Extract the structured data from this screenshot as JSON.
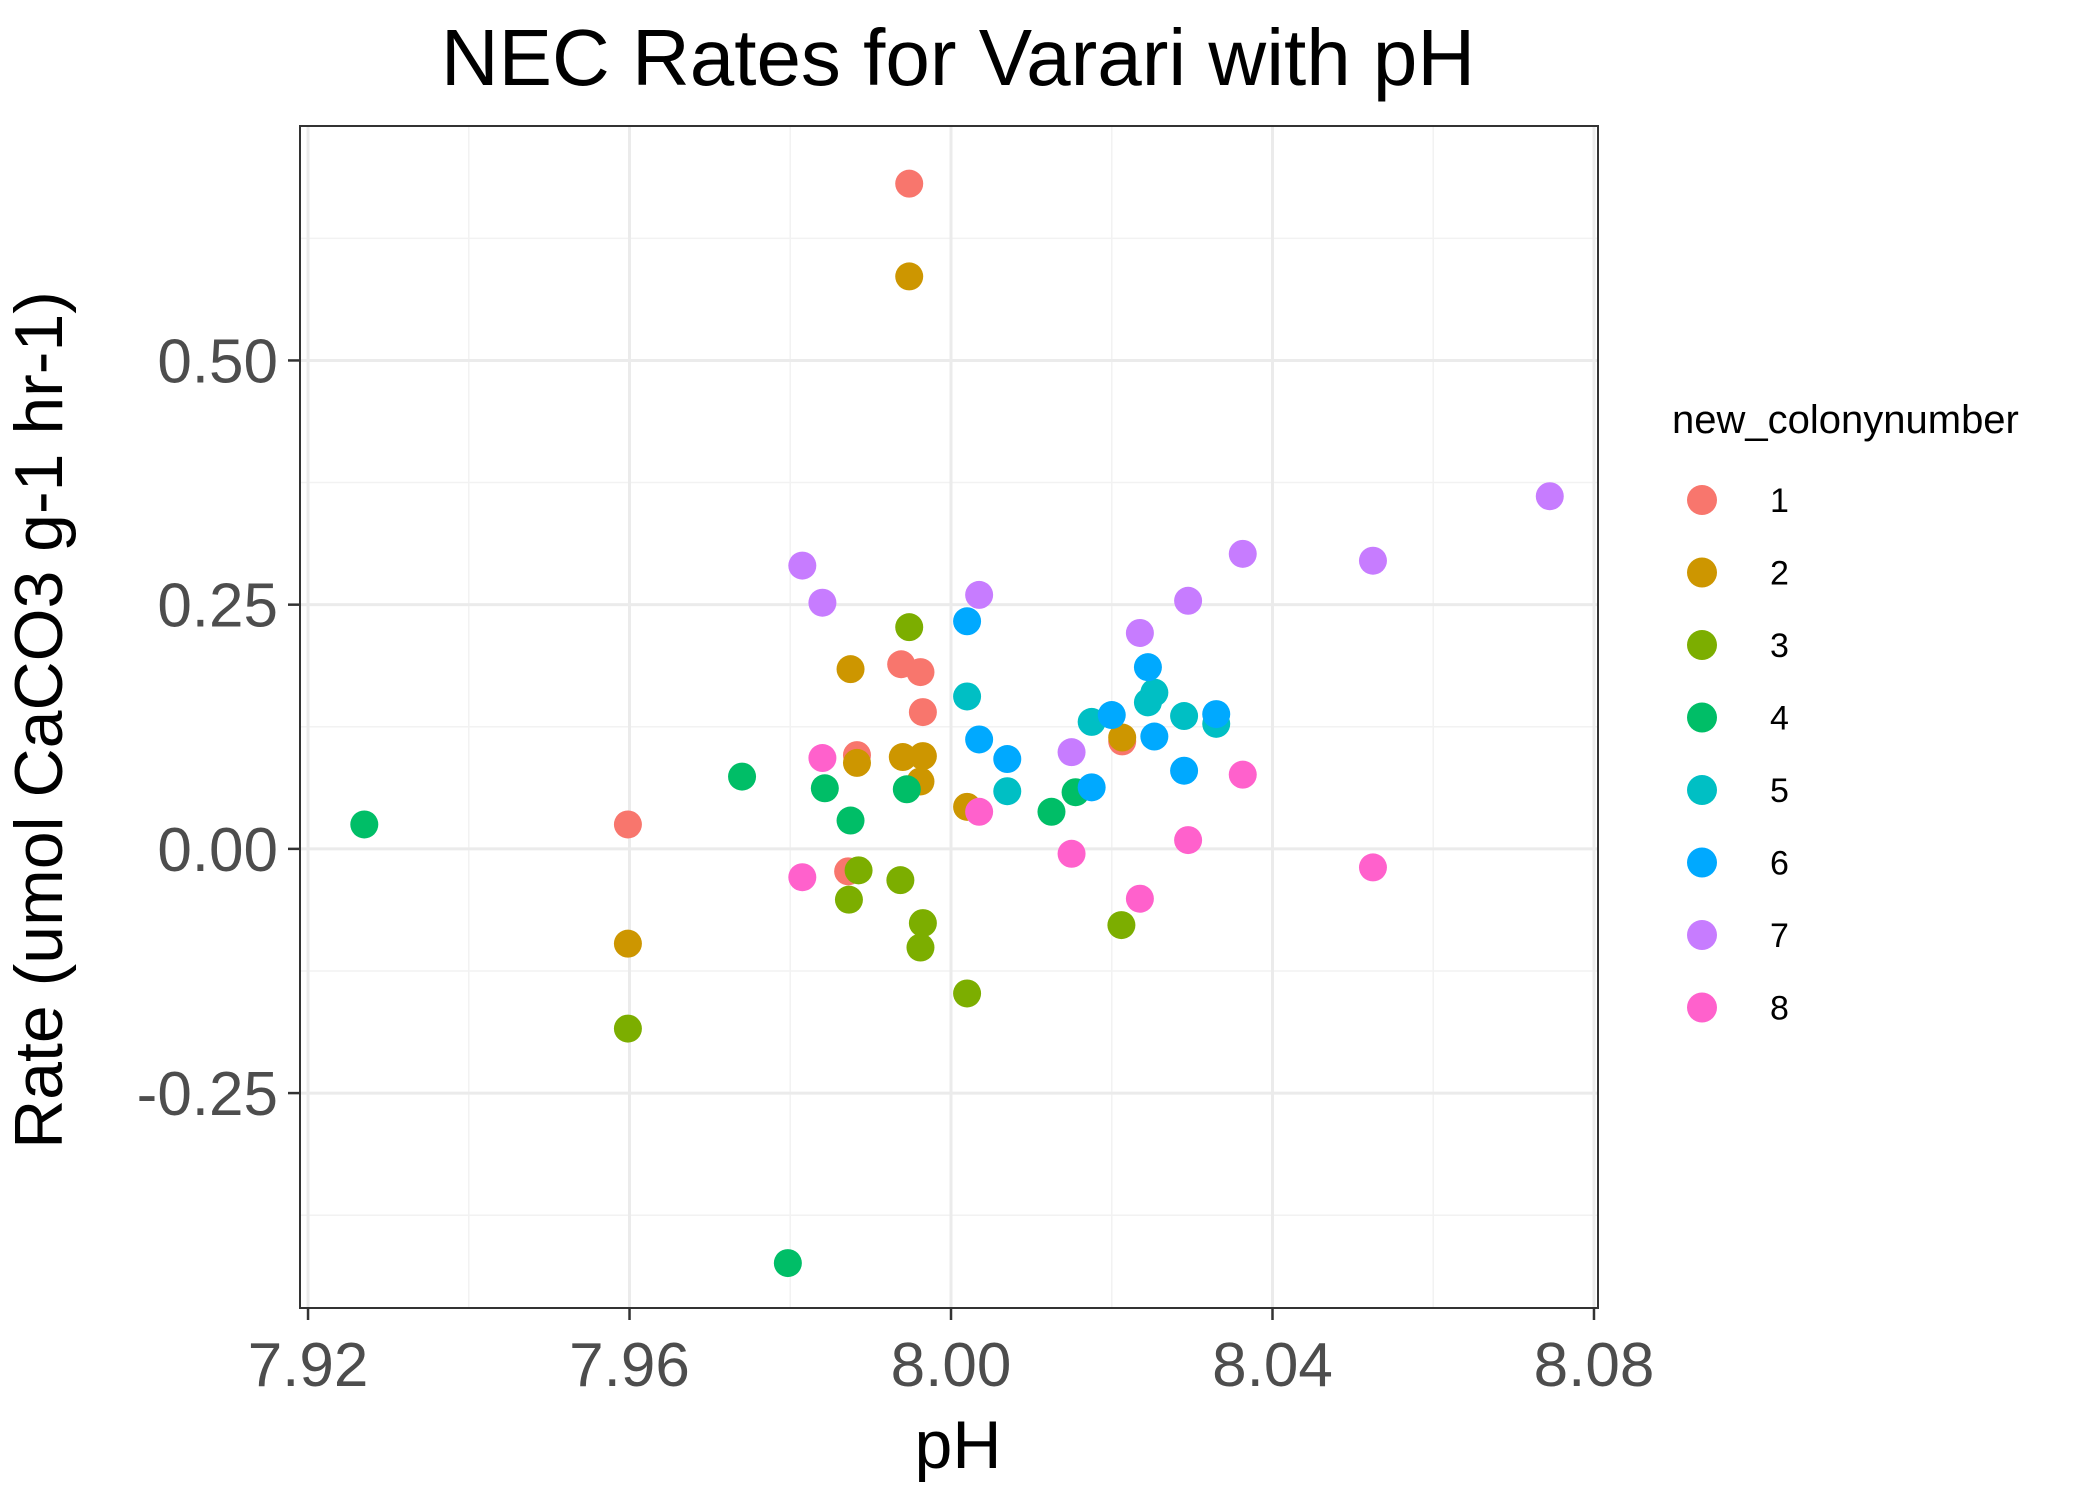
{
  "chart_data": {
    "type": "scatter",
    "title": "NEC Rates for Varari with pH",
    "xlabel": "pH",
    "ylabel": "Rate (umol CaCO3 g-1 hr-1)",
    "xlim": [
      7.919,
      8.0805
    ],
    "ylim": [
      -0.47,
      0.74
    ],
    "x_ticks": [
      7.92,
      7.96,
      8.0,
      8.04,
      8.08
    ],
    "x_tick_labels": [
      "7.92",
      "7.96",
      "8.00",
      "8.04",
      "8.08"
    ],
    "y_ticks": [
      -0.25,
      0.0,
      0.25,
      0.5
    ],
    "y_tick_labels": [
      "-0.25",
      "0.00",
      "0.25",
      "0.50"
    ],
    "grid": true,
    "legend": {
      "title": "new_colonynumber",
      "position": "right"
    },
    "series": [
      {
        "name": "1",
        "color": "#F8766D",
        "points": [
          [
            7.9948,
            0.681
          ],
          [
            7.9598,
            0.025
          ],
          [
            7.9938,
            0.189
          ],
          [
            7.9962,
            0.181
          ],
          [
            7.9965,
            0.14
          ],
          [
            7.9883,
            0.096
          ],
          [
            7.9872,
            -0.023
          ],
          [
            8.0213,
            0.11
          ]
        ]
      },
      {
        "name": "2",
        "color": "#CD9600",
        "points": [
          [
            7.9948,
            0.586
          ],
          [
            7.9598,
            -0.097
          ],
          [
            7.9875,
            0.184
          ],
          [
            7.9883,
            0.088
          ],
          [
            7.994,
            0.094
          ],
          [
            7.9965,
            0.095
          ],
          [
            7.9962,
            0.069
          ],
          [
            8.002,
            0.043
          ],
          [
            8.0213,
            0.114
          ]
        ]
      },
      {
        "name": "3",
        "color": "#7CAE00",
        "points": [
          [
            7.9598,
            -0.184
          ],
          [
            7.9948,
            0.227
          ],
          [
            7.9885,
            -0.022
          ],
          [
            7.9873,
            -0.052
          ],
          [
            7.9937,
            -0.032
          ],
          [
            7.9965,
            -0.076
          ],
          [
            7.9962,
            -0.101
          ],
          [
            8.002,
            -0.148
          ],
          [
            8.0212,
            -0.078
          ]
        ]
      },
      {
        "name": "4",
        "color": "#00BE67",
        "points": [
          [
            7.927,
            0.025
          ],
          [
            7.974,
            0.074
          ],
          [
            7.9797,
            -0.424
          ],
          [
            7.9843,
            0.062
          ],
          [
            7.9875,
            0.029
          ],
          [
            7.9945,
            0.061
          ],
          [
            8.0125,
            0.038
          ],
          [
            8.0155,
            0.058
          ]
        ]
      },
      {
        "name": "5",
        "color": "#00BFC4",
        "points": [
          [
            8.002,
            0.156
          ],
          [
            8.007,
            0.059
          ],
          [
            8.0175,
            0.13
          ],
          [
            8.0245,
            0.15
          ],
          [
            8.0253,
            0.16
          ],
          [
            8.029,
            0.136
          ],
          [
            8.033,
            0.128
          ]
        ]
      },
      {
        "name": "6",
        "color": "#00A9FF",
        "points": [
          [
            8.002,
            0.233
          ],
          [
            8.0035,
            0.112
          ],
          [
            8.007,
            0.092
          ],
          [
            8.0175,
            0.063
          ],
          [
            8.02,
            0.137
          ],
          [
            8.0245,
            0.186
          ],
          [
            8.0253,
            0.115
          ],
          [
            8.029,
            0.08
          ],
          [
            8.033,
            0.138
          ]
        ]
      },
      {
        "name": "7",
        "color": "#C77CFF",
        "points": [
          [
            7.9815,
            0.29
          ],
          [
            7.984,
            0.252
          ],
          [
            8.0035,
            0.26
          ],
          [
            8.015,
            0.099
          ],
          [
            8.0235,
            0.221
          ],
          [
            8.0295,
            0.254
          ],
          [
            8.0363,
            0.302
          ],
          [
            8.0525,
            0.295
          ],
          [
            8.0745,
            0.361
          ]
        ]
      },
      {
        "name": "8",
        "color": "#FF61CC",
        "points": [
          [
            7.9815,
            -0.029
          ],
          [
            7.984,
            0.093
          ],
          [
            8.0035,
            0.038
          ],
          [
            8.015,
            -0.005
          ],
          [
            8.0235,
            -0.051
          ],
          [
            8.0295,
            0.009
          ],
          [
            8.0363,
            0.076
          ],
          [
            8.0525,
            -0.019
          ]
        ]
      }
    ]
  }
}
